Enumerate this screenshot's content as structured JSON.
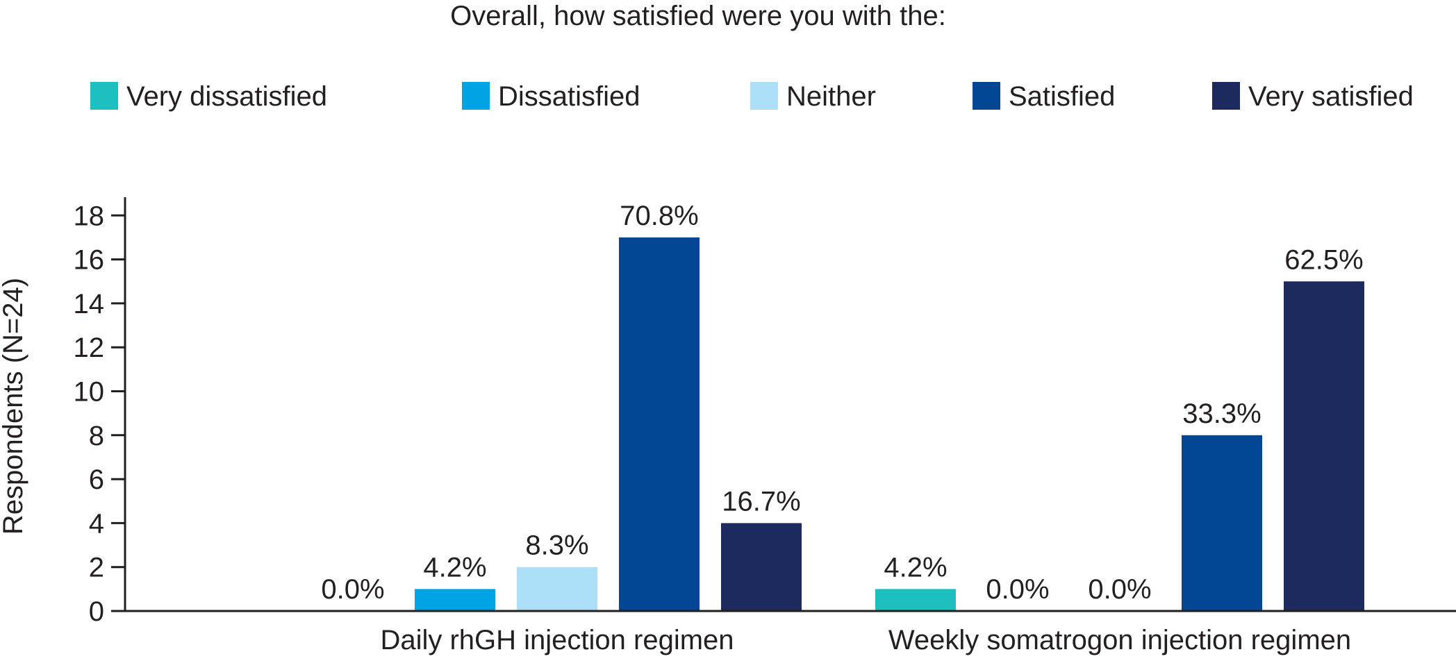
{
  "chart_data": {
    "type": "bar",
    "title": "Overall, how satisfied were you with the:",
    "xlabel": "",
    "ylabel": "Respondents (N=24)",
    "ylim": [
      0,
      19
    ],
    "yticks": [
      0,
      2,
      4,
      6,
      8,
      10,
      12,
      14,
      16,
      18
    ],
    "categories": [
      "Daily rhGH injection regimen",
      "Weekly somatrogon injection regimen"
    ],
    "legend_position": "top",
    "series": [
      {
        "name": "Very dissatisfied",
        "color": "#1ebfbf",
        "values": [
          0,
          1
        ],
        "labels": [
          "0.0%",
          "4.2%"
        ]
      },
      {
        "name": "Dissatisfied",
        "color": "#00a4e4",
        "values": [
          1,
          0
        ],
        "labels": [
          "4.2%",
          "0.0%"
        ]
      },
      {
        "name": "Neither",
        "color": "#ade0f8",
        "values": [
          2,
          0
        ],
        "labels": [
          "8.3%",
          "0.0%"
        ]
      },
      {
        "name": "Satisfied",
        "color": "#034694",
        "values": [
          17,
          8
        ],
        "labels": [
          "70.8%",
          "33.3%"
        ]
      },
      {
        "name": "Very satisfied",
        "color": "#1c2a5e",
        "values": [
          4,
          15
        ],
        "labels": [
          "16.7%",
          "62.5%"
        ]
      }
    ]
  }
}
